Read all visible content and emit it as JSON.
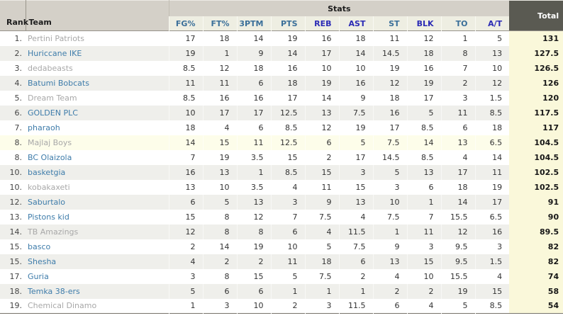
{
  "table": {
    "header": {
      "rank": "Rank",
      "team": "Team",
      "stats_group": "Stats",
      "total": "Total",
      "stat_columns": [
        {
          "label": "FG%",
          "tone": "light"
        },
        {
          "label": "FT%",
          "tone": "light"
        },
        {
          "label": "3PTM",
          "tone": "light"
        },
        {
          "label": "PTS",
          "tone": "light"
        },
        {
          "label": "REB",
          "tone": "dark"
        },
        {
          "label": "AST",
          "tone": "dark"
        },
        {
          "label": "ST",
          "tone": "light"
        },
        {
          "label": "BLK",
          "tone": "dark"
        },
        {
          "label": "TO",
          "tone": "light"
        },
        {
          "label": "A/T",
          "tone": "dark"
        }
      ]
    },
    "rows": [
      {
        "rank": "1.",
        "team": "Pertini Patriots",
        "team_style": "gray",
        "highlight": false,
        "values": [
          "17",
          "18",
          "14",
          "19",
          "16",
          "18",
          "11",
          "12",
          "1",
          "5"
        ],
        "total": "131"
      },
      {
        "rank": "2.",
        "team": "Huriccane IKE",
        "team_style": "blue",
        "highlight": false,
        "values": [
          "19",
          "1",
          "9",
          "14",
          "17",
          "14",
          "14.5",
          "18",
          "8",
          "13"
        ],
        "total": "127.5"
      },
      {
        "rank": "3.",
        "team": "dedabeasts",
        "team_style": "gray",
        "highlight": false,
        "values": [
          "8.5",
          "12",
          "18",
          "16",
          "10",
          "10",
          "19",
          "16",
          "7",
          "10"
        ],
        "total": "126.5"
      },
      {
        "rank": "4.",
        "team": "Batumi Bobcats",
        "team_style": "blue",
        "highlight": false,
        "values": [
          "11",
          "11",
          "6",
          "18",
          "19",
          "16",
          "12",
          "19",
          "2",
          "12"
        ],
        "total": "126"
      },
      {
        "rank": "5.",
        "team": "Dream Team",
        "team_style": "gray",
        "highlight": false,
        "values": [
          "8.5",
          "16",
          "16",
          "17",
          "14",
          "9",
          "18",
          "17",
          "3",
          "1.5"
        ],
        "total": "120"
      },
      {
        "rank": "6.",
        "team": "GOLDEN PLC",
        "team_style": "blue",
        "highlight": false,
        "values": [
          "10",
          "17",
          "17",
          "12.5",
          "13",
          "7.5",
          "16",
          "5",
          "11",
          "8.5"
        ],
        "total": "117.5"
      },
      {
        "rank": "7.",
        "team": "pharaoh",
        "team_style": "blue",
        "highlight": false,
        "values": [
          "18",
          "4",
          "6",
          "8.5",
          "12",
          "19",
          "17",
          "8.5",
          "6",
          "18"
        ],
        "total": "117"
      },
      {
        "rank": "8.",
        "team": "Majlaj Boys",
        "team_style": "gray",
        "highlight": true,
        "values": [
          "14",
          "15",
          "11",
          "12.5",
          "6",
          "5",
          "7.5",
          "14",
          "13",
          "6.5"
        ],
        "total": "104.5"
      },
      {
        "rank": "8.",
        "team": "BC Olaizola",
        "team_style": "blue",
        "highlight": false,
        "values": [
          "7",
          "19",
          "3.5",
          "15",
          "2",
          "17",
          "14.5",
          "8.5",
          "4",
          "14"
        ],
        "total": "104.5"
      },
      {
        "rank": "10.",
        "team": "basketgia",
        "team_style": "blue",
        "highlight": false,
        "values": [
          "16",
          "13",
          "1",
          "8.5",
          "15",
          "3",
          "5",
          "13",
          "17",
          "11"
        ],
        "total": "102.5"
      },
      {
        "rank": "10.",
        "team": "kobakaxeti",
        "team_style": "gray",
        "highlight": false,
        "values": [
          "13",
          "10",
          "3.5",
          "4",
          "11",
          "15",
          "3",
          "6",
          "18",
          "19"
        ],
        "total": "102.5"
      },
      {
        "rank": "12.",
        "team": "Saburtalo",
        "team_style": "blue",
        "highlight": false,
        "values": [
          "6",
          "5",
          "13",
          "3",
          "9",
          "13",
          "10",
          "1",
          "14",
          "17"
        ],
        "total": "91"
      },
      {
        "rank": "13.",
        "team": "Pistons kid",
        "team_style": "blue",
        "highlight": false,
        "values": [
          "15",
          "8",
          "12",
          "7",
          "7.5",
          "4",
          "7.5",
          "7",
          "15.5",
          "6.5"
        ],
        "total": "90"
      },
      {
        "rank": "14.",
        "team": "TB Amazings",
        "team_style": "gray",
        "highlight": false,
        "values": [
          "12",
          "8",
          "8",
          "6",
          "4",
          "11.5",
          "1",
          "11",
          "12",
          "16"
        ],
        "total": "89.5"
      },
      {
        "rank": "15.",
        "team": "basco",
        "team_style": "blue",
        "highlight": false,
        "values": [
          "2",
          "14",
          "19",
          "10",
          "5",
          "7.5",
          "9",
          "3",
          "9.5",
          "3"
        ],
        "total": "82"
      },
      {
        "rank": "15.",
        "team": "Shesha",
        "team_style": "blue",
        "highlight": false,
        "values": [
          "4",
          "2",
          "2",
          "11",
          "18",
          "6",
          "13",
          "15",
          "9.5",
          "1.5"
        ],
        "total": "82"
      },
      {
        "rank": "17.",
        "team": "Guria",
        "team_style": "blue",
        "highlight": false,
        "values": [
          "3",
          "8",
          "15",
          "5",
          "7.5",
          "2",
          "4",
          "10",
          "15.5",
          "4"
        ],
        "total": "74"
      },
      {
        "rank": "18.",
        "team": "Temka 38-ers",
        "team_style": "blue",
        "highlight": false,
        "values": [
          "5",
          "6",
          "6",
          "1",
          "1",
          "1",
          "2",
          "2",
          "19",
          "15"
        ],
        "total": "58"
      },
      {
        "rank": "19.",
        "team": "Chemical Dinamo",
        "team_style": "gray",
        "highlight": false,
        "values": [
          "1",
          "3",
          "10",
          "2",
          "3",
          "11.5",
          "6",
          "4",
          "5",
          "8.5"
        ],
        "total": "54"
      }
    ]
  },
  "colors": {
    "header_bg": "#d4d0c8",
    "stat_header_bg": "#eeeee2",
    "stat_link_light": "#3a6f99",
    "stat_link_dark": "#2b2bb5",
    "total_header_bg": "#5a5a52",
    "total_header_text": "#ffffff",
    "total_column_bg": "#faf8da",
    "row_stripe": "#efefeb",
    "highlight_row": "#fdfdea",
    "team_link_blue": "#3e7caa",
    "team_link_gray": "#a8a8a8"
  }
}
